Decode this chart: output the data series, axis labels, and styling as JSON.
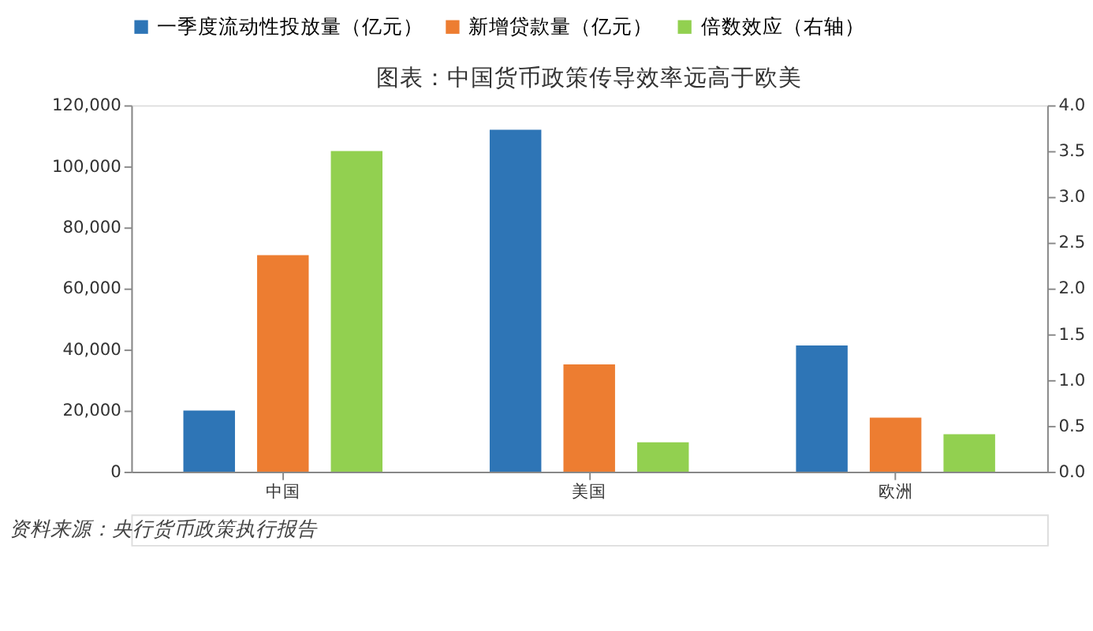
{
  "chart_data": {
    "type": "bar",
    "title": "图表：中国货币政策传导效率远高于欧美",
    "categories": [
      "中国",
      "美国",
      "欧洲"
    ],
    "series": [
      {
        "name": "一季度流动性投放量（亿元）",
        "color": "#2e75b6",
        "values": [
          20000,
          112000,
          41300
        ]
      },
      {
        "name": "新增贷款量（亿元）",
        "color": "#ed7d31",
        "values": [
          70900,
          35100,
          17700
        ]
      },
      {
        "name": "倍数效应（右轴）",
        "color": "#92d050",
        "values": [
          3.5,
          0.32,
          0.41
        ],
        "axis": "y2"
      }
    ],
    "ylim": [
      0,
      120000
    ],
    "yticks": [
      0,
      {
        "value": 20000,
        "label": "20,000"
      },
      {
        "value": 40000,
        "label": "40,000"
      },
      {
        "value": 60000,
        "label": "60,000"
      },
      {
        "value": 80000,
        "label": "80,000"
      },
      {
        "value": 100000,
        "label": "100,000"
      },
      {
        "value": 120000,
        "label": "120,000"
      }
    ],
    "y2lim": [
      0,
      4
    ],
    "y2ticks": [
      {
        "value": 0,
        "label": "0.0"
      },
      0.5,
      {
        "value": 1,
        "label": "1.0"
      },
      1.5,
      {
        "value": 2,
        "label": "2.0"
      },
      2.5,
      {
        "value": 3,
        "label": "3.0"
      },
      3.5,
      {
        "value": 4,
        "label": "4.0"
      }
    ],
    "grid": false,
    "legend": "top",
    "annotations": [
      "资料来源：央行货币政策执行报告"
    ]
  }
}
